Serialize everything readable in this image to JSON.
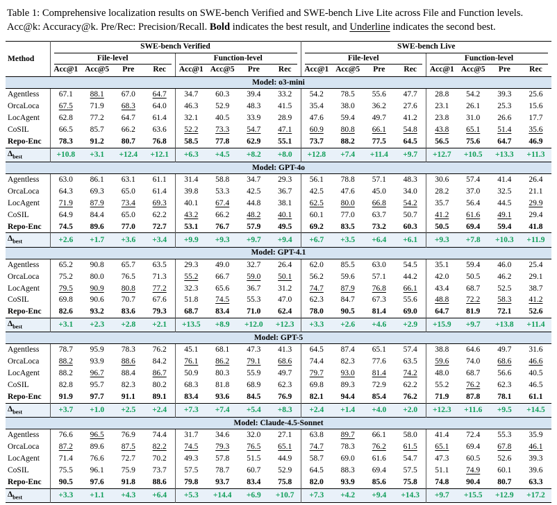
{
  "caption": {
    "segments": [
      {
        "text": "Table 1: Comprehensive localization results on SWE-bench Verified and SWE-bench Live Lite across File and Function levels. Acc@k: Accuracy@k. Pre/Rec: Precision/Recall. ",
        "style": "normal"
      },
      {
        "text": "Bold",
        "style": "bold"
      },
      {
        "text": " indicates the best result, and ",
        "style": "normal"
      },
      {
        "text": "Underline",
        "style": "underline"
      },
      {
        "text": " indicates the second best.",
        "style": "normal"
      }
    ]
  },
  "table": {
    "method_header": "Method",
    "benches": [
      "SWE-bench Verified",
      "SWE-bench Live"
    ],
    "levels": [
      "File-level",
      "Function-level"
    ],
    "metrics": [
      "Acc@1",
      "Acc@5",
      "Pre",
      "Rec"
    ],
    "delta_symbol": "Δ",
    "delta_subscript": "best",
    "colors": {
      "model_band": "#d6e4f2",
      "delta_band": "#e9f1f9",
      "delta_text": "#0f9d58"
    },
    "sections": [
      {
        "model": "Model: o3-mini",
        "rows": [
          {
            "method": "Agentless",
            "bold": false,
            "underline": [
              1,
              3
            ],
            "values": [
              "67.1",
              "88.1",
              "67.0",
              "64.7",
              "34.7",
              "60.3",
              "39.4",
              "33.2",
              "54.2",
              "78.5",
              "55.6",
              "47.7",
              "28.8",
              "54.2",
              "39.3",
              "25.6"
            ]
          },
          {
            "method": "OrcaLoca",
            "bold": false,
            "underline": [
              0,
              2
            ],
            "values": [
              "67.5",
              "71.9",
              "68.3",
              "64.0",
              "46.3",
              "52.9",
              "48.3",
              "41.5",
              "35.4",
              "38.0",
              "36.2",
              "27.6",
              "23.1",
              "26.1",
              "25.3",
              "15.6"
            ]
          },
          {
            "method": "LocAgent",
            "bold": false,
            "underline": [],
            "values": [
              "62.8",
              "77.2",
              "64.7",
              "61.4",
              "32.1",
              "40.5",
              "33.9",
              "28.9",
              "47.6",
              "59.4",
              "49.7",
              "41.2",
              "23.8",
              "31.0",
              "26.6",
              "17.7"
            ]
          },
          {
            "method": "CoSIL",
            "bold": false,
            "underline": [
              4,
              5,
              6,
              7,
              8,
              9,
              10,
              11,
              12,
              13,
              14,
              15
            ],
            "values": [
              "66.5",
              "85.7",
              "66.2",
              "63.6",
              "52.2",
              "73.3",
              "54.7",
              "47.1",
              "60.9",
              "80.8",
              "66.1",
              "54.8",
              "43.8",
              "65.1",
              "51.4",
              "35.6"
            ]
          },
          {
            "method": "Repo-Enc",
            "bold": true,
            "underline": [],
            "values": [
              "78.3",
              "91.2",
              "80.7",
              "76.8",
              "58.5",
              "77.8",
              "62.9",
              "55.1",
              "73.7",
              "88.2",
              "77.5",
              "64.5",
              "56.5",
              "75.6",
              "64.7",
              "46.9"
            ]
          }
        ],
        "delta": [
          "+10.8",
          "+3.1",
          "+12.4",
          "+12.1",
          "+6.3",
          "+4.5",
          "+8.2",
          "+8.0",
          "+12.8",
          "+7.4",
          "+11.4",
          "+9.7",
          "+12.7",
          "+10.5",
          "+13.3",
          "+11.3"
        ]
      },
      {
        "model": "Model: GPT-4o",
        "rows": [
          {
            "method": "Agentless",
            "bold": false,
            "underline": [],
            "values": [
              "63.0",
              "86.1",
              "63.1",
              "61.1",
              "31.4",
              "58.8",
              "34.7",
              "29.3",
              "56.1",
              "78.8",
              "57.1",
              "48.3",
              "30.6",
              "57.4",
              "41.4",
              "26.4"
            ]
          },
          {
            "method": "OrcaLoca",
            "bold": false,
            "underline": [],
            "values": [
              "64.3",
              "69.3",
              "65.0",
              "61.4",
              "39.8",
              "53.3",
              "42.5",
              "36.7",
              "42.5",
              "47.6",
              "45.0",
              "34.0",
              "28.2",
              "37.0",
              "32.5",
              "21.1"
            ]
          },
          {
            "method": "LocAgent",
            "bold": false,
            "underline": [
              0,
              1,
              2,
              3,
              5,
              8,
              9,
              10,
              11,
              15
            ],
            "values": [
              "71.9",
              "87.9",
              "73.4",
              "69.3",
              "40.1",
              "67.4",
              "44.8",
              "38.1",
              "62.5",
              "80.0",
              "66.8",
              "54.2",
              "35.7",
              "56.4",
              "44.5",
              "29.9"
            ]
          },
          {
            "method": "CoSIL",
            "bold": false,
            "underline": [
              4,
              6,
              7,
              12,
              13,
              14
            ],
            "values": [
              "64.9",
              "84.4",
              "65.0",
              "62.2",
              "43.2",
              "66.2",
              "48.2",
              "40.1",
              "60.1",
              "77.0",
              "63.7",
              "50.7",
              "41.2",
              "61.6",
              "49.1",
              "29.4"
            ]
          },
          {
            "method": "Repo-Enc",
            "bold": true,
            "underline": [],
            "values": [
              "74.5",
              "89.6",
              "77.0",
              "72.7",
              "53.1",
              "76.7",
              "57.9",
              "49.5",
              "69.2",
              "83.5",
              "73.2",
              "60.3",
              "50.5",
              "69.4",
              "59.4",
              "41.8"
            ]
          }
        ],
        "delta": [
          "+2.6",
          "+1.7",
          "+3.6",
          "+3.4",
          "+9.9",
          "+9.3",
          "+9.7",
          "+9.4",
          "+6.7",
          "+3.5",
          "+6.4",
          "+6.1",
          "+9.3",
          "+7.8",
          "+10.3",
          "+11.9"
        ]
      },
      {
        "model": "Model: GPT-4.1",
        "rows": [
          {
            "method": "Agentless",
            "bold": false,
            "underline": [],
            "values": [
              "65.2",
              "90.8",
              "65.7",
              "63.5",
              "29.3",
              "49.0",
              "32.7",
              "26.4",
              "62.0",
              "85.5",
              "63.0",
              "54.5",
              "35.1",
              "59.4",
              "46.0",
              "25.4"
            ]
          },
          {
            "method": "OrcaLoca",
            "bold": false,
            "underline": [
              4,
              6,
              7
            ],
            "values": [
              "75.2",
              "80.0",
              "76.5",
              "71.3",
              "55.2",
              "66.7",
              "59.0",
              "50.1",
              "56.2",
              "59.6",
              "57.1",
              "44.2",
              "42.0",
              "50.5",
              "46.2",
              "29.1"
            ]
          },
          {
            "method": "LocAgent",
            "bold": false,
            "underline": [
              0,
              1,
              2,
              3,
              8,
              9,
              10,
              11
            ],
            "values": [
              "79.5",
              "90.9",
              "80.8",
              "77.2",
              "32.3",
              "65.6",
              "36.7",
              "31.2",
              "74.7",
              "87.9",
              "76.8",
              "66.1",
              "43.4",
              "68.7",
              "52.5",
              "38.7"
            ]
          },
          {
            "method": "CoSIL",
            "bold": false,
            "underline": [
              5,
              12,
              13,
              14,
              15
            ],
            "values": [
              "69.8",
              "90.6",
              "70.7",
              "67.6",
              "51.8",
              "74.5",
              "55.3",
              "47.0",
              "62.3",
              "84.7",
              "67.3",
              "55.6",
              "48.8",
              "72.2",
              "58.3",
              "41.2"
            ]
          },
          {
            "method": "Repo-Enc",
            "bold": true,
            "underline": [],
            "values": [
              "82.6",
              "93.2",
              "83.6",
              "79.3",
              "68.7",
              "83.4",
              "71.0",
              "62.4",
              "78.0",
              "90.5",
              "81.4",
              "69.0",
              "64.7",
              "81.9",
              "72.1",
              "52.6"
            ]
          }
        ],
        "delta": [
          "+3.1",
          "+2.3",
          "+2.8",
          "+2.1",
          "+13.5",
          "+8.9",
          "+12.0",
          "+12.3",
          "+3.3",
          "+2.6",
          "+4.6",
          "+2.9",
          "+15.9",
          "+9.7",
          "+13.8",
          "+11.4"
        ]
      },
      {
        "model": "Model: GPT-5",
        "rows": [
          {
            "method": "Agentless",
            "bold": false,
            "underline": [],
            "values": [
              "78.7",
              "95.9",
              "78.3",
              "76.2",
              "45.1",
              "68.1",
              "47.3",
              "41.3",
              "64.5",
              "87.4",
              "65.1",
              "57.4",
              "38.8",
              "64.6",
              "49.7",
              "31.6"
            ]
          },
          {
            "method": "OrcaLoca",
            "bold": false,
            "underline": [
              0,
              2,
              4,
              5,
              6,
              7,
              12,
              14,
              15
            ],
            "values": [
              "88.2",
              "93.9",
              "88.6",
              "84.2",
              "76.1",
              "86.2",
              "79.1",
              "68.6",
              "74.4",
              "82.3",
              "77.6",
              "63.5",
              "59.6",
              "74.0",
              "68.6",
              "46.6"
            ]
          },
          {
            "method": "LocAgent",
            "bold": false,
            "underline": [
              1,
              3,
              8,
              9,
              10,
              11
            ],
            "values": [
              "88.2",
              "96.7",
              "88.4",
              "86.7",
              "50.9",
              "80.3",
              "55.9",
              "49.7",
              "79.7",
              "93.0",
              "81.4",
              "74.2",
              "48.0",
              "68.7",
              "56.6",
              "40.5"
            ]
          },
          {
            "method": "CoSIL",
            "bold": false,
            "underline": [
              13
            ],
            "values": [
              "82.8",
              "95.7",
              "82.3",
              "80.2",
              "68.3",
              "81.8",
              "68.9",
              "62.3",
              "69.8",
              "89.3",
              "72.9",
              "62.2",
              "55.2",
              "76.2",
              "62.3",
              "46.5"
            ]
          },
          {
            "method": "Repo-Enc",
            "bold": true,
            "underline": [],
            "values": [
              "91.9",
              "97.7",
              "91.1",
              "89.1",
              "83.4",
              "93.6",
              "84.5",
              "76.9",
              "82.1",
              "94.4",
              "85.4",
              "76.2",
              "71.9",
              "87.8",
              "78.1",
              "61.1"
            ]
          }
        ],
        "delta": [
          "+3.7",
          "+1.0",
          "+2.5",
          "+2.4",
          "+7.3",
          "+7.4",
          "+5.4",
          "+8.3",
          "+2.4",
          "+1.4",
          "+4.0",
          "+2.0",
          "+12.3",
          "+11.6",
          "+9.5",
          "+14.5"
        ]
      },
      {
        "model": "Model: Claude-4.5-Sonnet",
        "rows": [
          {
            "method": "Agentless",
            "bold": false,
            "underline": [
              1,
              9
            ],
            "values": [
              "76.6",
              "96.5",
              "76.9",
              "74.4",
              "31.7",
              "34.6",
              "32.0",
              "27.1",
              "63.8",
              "89.7",
              "66.1",
              "58.0",
              "41.4",
              "72.4",
              "55.3",
              "35.9"
            ]
          },
          {
            "method": "OrcaLoca",
            "bold": false,
            "underline": [
              0,
              2,
              3,
              4,
              5,
              6,
              7,
              8,
              10,
              11,
              12,
              14,
              15
            ],
            "values": [
              "87.2",
              "89.6",
              "87.5",
              "82.2",
              "74.5",
              "79.3",
              "76.5",
              "65.1",
              "74.7",
              "78.3",
              "76.2",
              "61.5",
              "65.1",
              "69.4",
              "67.8",
              "46.1"
            ]
          },
          {
            "method": "LocAgent",
            "bold": false,
            "underline": [],
            "values": [
              "71.4",
              "76.6",
              "72.7",
              "70.2",
              "49.3",
              "57.8",
              "51.5",
              "44.9",
              "58.7",
              "69.0",
              "61.6",
              "54.7",
              "47.3",
              "60.5",
              "52.6",
              "39.3"
            ]
          },
          {
            "method": "CoSIL",
            "bold": false,
            "underline": [
              13
            ],
            "values": [
              "75.5",
              "96.1",
              "75.9",
              "73.7",
              "57.5",
              "78.7",
              "60.7",
              "52.9",
              "64.5",
              "88.3",
              "69.4",
              "57.5",
              "51.1",
              "74.9",
              "60.1",
              "39.6"
            ]
          },
          {
            "method": "Repo-Enc",
            "bold": true,
            "underline": [],
            "values": [
              "90.5",
              "97.6",
              "91.8",
              "88.6",
              "79.8",
              "93.7",
              "83.4",
              "75.8",
              "82.0",
              "93.9",
              "85.6",
              "75.8",
              "74.8",
              "90.4",
              "80.7",
              "63.3"
            ]
          }
        ],
        "delta": [
          "+3.3",
          "+1.1",
          "+4.3",
          "+6.4",
          "+5.3",
          "+14.4",
          "+6.9",
          "+10.7",
          "+7.3",
          "+4.2",
          "+9.4",
          "+14.3",
          "+9.7",
          "+15.5",
          "+12.9",
          "+17.2"
        ]
      }
    ]
  }
}
